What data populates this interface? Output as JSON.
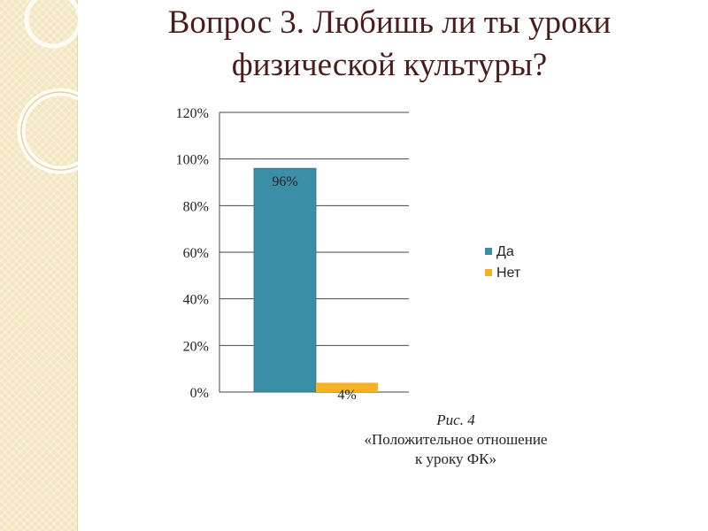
{
  "slide": {
    "title_line1": "Вопрос 3. Любишь ли ты уроки",
    "title_line2": "физической культуры?",
    "caption_figure": "Рис. 4",
    "caption_text": " «Положительное отношение",
    "caption_line2": "к уроку ФК»"
  },
  "colors": {
    "title": "#4a1d1a",
    "side_panel": "#f2e6bf",
    "series_yes": "#3a8fa6",
    "series_no": "#f5b324",
    "gridline": "#444444"
  },
  "chart_data": {
    "type": "bar",
    "categories": [
      ""
    ],
    "series": [
      {
        "name": "Да",
        "values": [
          96
        ],
        "label": "96%",
        "color": "#3a8fa6"
      },
      {
        "name": "Нет",
        "values": [
          4
        ],
        "label": "4%",
        "color": "#f5b324"
      }
    ],
    "ylim": [
      0,
      120
    ],
    "yticks": [
      0,
      20,
      40,
      60,
      80,
      100,
      120
    ],
    "ytick_labels": [
      "0%",
      "20%",
      "40%",
      "60%",
      "80%",
      "100%",
      "120%"
    ],
    "grid": true,
    "legend": "right",
    "title": "",
    "xlabel": "",
    "ylabel": ""
  }
}
